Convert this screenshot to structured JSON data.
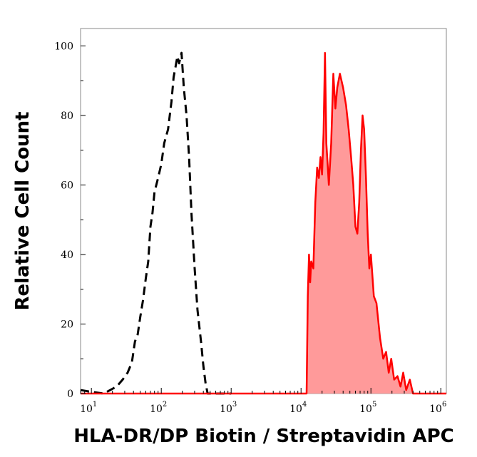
{
  "chart_data": {
    "type": "area",
    "xlabel": "HLA-DR/DP Biotin / Streptavidin APC",
    "ylabel": "Relative Cell Count",
    "xscale": "log",
    "xlim": [
      7,
      1200000
    ],
    "ylim": [
      0,
      105
    ],
    "x_ticks": [
      {
        "base": "10",
        "exp": "1",
        "value": 10
      },
      {
        "base": "10",
        "exp": "2",
        "value": 100
      },
      {
        "base": "10",
        "exp": "3",
        "value": 1000
      },
      {
        "base": "10",
        "exp": "4",
        "value": 10000
      },
      {
        "base": "10",
        "exp": "5",
        "value": 100000
      },
      {
        "base": "10",
        "exp": "6",
        "value": 1000000
      }
    ],
    "y_ticks": [
      "0",
      "20",
      "40",
      "60",
      "80",
      "100"
    ],
    "grid": false,
    "series": [
      {
        "style": "dashed",
        "color": "#000000",
        "fill": "none",
        "points": [
          [
            7,
            1
          ],
          [
            10,
            0.5
          ],
          [
            15,
            0
          ],
          [
            23,
            2
          ],
          [
            28,
            4
          ],
          [
            33,
            6
          ],
          [
            38,
            9
          ],
          [
            42,
            15
          ],
          [
            46,
            17
          ],
          [
            50,
            22
          ],
          [
            55,
            27
          ],
          [
            60,
            33
          ],
          [
            65,
            38
          ],
          [
            70,
            48
          ],
          [
            75,
            52
          ],
          [
            80,
            58
          ],
          [
            90,
            62
          ],
          [
            100,
            66
          ],
          [
            110,
            72
          ],
          [
            125,
            76
          ],
          [
            140,
            84
          ],
          [
            150,
            91
          ],
          [
            160,
            94
          ],
          [
            170,
            97
          ],
          [
            180,
            95
          ],
          [
            195,
            98
          ],
          [
            210,
            88
          ],
          [
            230,
            80
          ],
          [
            250,
            68
          ],
          [
            270,
            52
          ],
          [
            300,
            36
          ],
          [
            330,
            24
          ],
          [
            370,
            15
          ],
          [
            400,
            8
          ],
          [
            430,
            3
          ],
          [
            460,
            0
          ],
          [
            1000,
            0
          ]
        ]
      },
      {
        "style": "solid",
        "color": "#ff0000",
        "fill": "#ff9a9a",
        "points": [
          [
            7,
            0
          ],
          [
            12000,
            0
          ],
          [
            12500,
            28
          ],
          [
            13000,
            40
          ],
          [
            13500,
            32
          ],
          [
            14000,
            38
          ],
          [
            15000,
            36
          ],
          [
            16000,
            55
          ],
          [
            17000,
            65
          ],
          [
            18000,
            62
          ],
          [
            19000,
            68
          ],
          [
            20000,
            63
          ],
          [
            21000,
            75
          ],
          [
            22000,
            98
          ],
          [
            23000,
            72
          ],
          [
            24000,
            66
          ],
          [
            25000,
            60
          ],
          [
            27000,
            72
          ],
          [
            29000,
            92
          ],
          [
            31000,
            82
          ],
          [
            33000,
            88
          ],
          [
            36000,
            92
          ],
          [
            40000,
            88
          ],
          [
            44000,
            83
          ],
          [
            48000,
            76
          ],
          [
            52000,
            68
          ],
          [
            56000,
            60
          ],
          [
            60000,
            48
          ],
          [
            64000,
            46
          ],
          [
            68000,
            55
          ],
          [
            72000,
            70
          ],
          [
            76000,
            80
          ],
          [
            80000,
            76
          ],
          [
            85000,
            62
          ],
          [
            90000,
            46
          ],
          [
            95000,
            36
          ],
          [
            100000,
            40
          ],
          [
            110000,
            28
          ],
          [
            120000,
            26
          ],
          [
            135000,
            16
          ],
          [
            150000,
            10
          ],
          [
            165000,
            12
          ],
          [
            180000,
            6
          ],
          [
            195000,
            10
          ],
          [
            215000,
            4
          ],
          [
            240000,
            5
          ],
          [
            265000,
            2
          ],
          [
            290000,
            6
          ],
          [
            320000,
            1
          ],
          [
            360000,
            4
          ],
          [
            400000,
            0
          ],
          [
            1200000,
            0
          ]
        ]
      }
    ]
  }
}
